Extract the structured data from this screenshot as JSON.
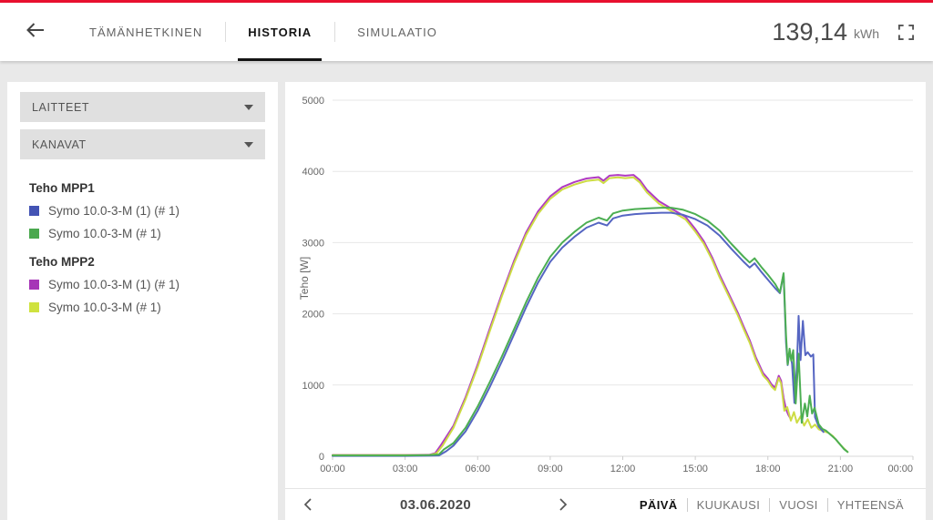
{
  "header": {
    "tabs": [
      {
        "label": "TÄMÄNHETKINEN",
        "active": false
      },
      {
        "label": "HISTORIA",
        "active": true
      },
      {
        "label": "SIMULAATIO",
        "active": false
      }
    ],
    "total_value": "139,14",
    "total_unit": "kWh"
  },
  "sidebar": {
    "dropdowns": [
      {
        "label": "LAITTEET"
      },
      {
        "label": "KANAVAT"
      }
    ],
    "legend_groups": [
      {
        "title": "Teho MPP1",
        "items": [
          {
            "label": "Symo 10.0-3-M (1) (# 1)",
            "color": "#4353b4"
          },
          {
            "label": "Symo 10.0-3-M (# 1)",
            "color": "#4aa84e"
          }
        ]
      },
      {
        "title": "Teho MPP2",
        "items": [
          {
            "label": "Symo 10.0-3-M (1) (# 1)",
            "color": "#a635b7"
          },
          {
            "label": "Symo 10.0-3-M (# 1)",
            "color": "#cfe23f"
          }
        ]
      }
    ]
  },
  "bottom_bar": {
    "date": "03.06.2020",
    "periods": [
      {
        "label": "PÄIVÄ",
        "active": true
      },
      {
        "label": "KUUKAUSI",
        "active": false
      },
      {
        "label": "VUOSI",
        "active": false
      },
      {
        "label": "YHTEENSÄ",
        "active": false
      }
    ]
  },
  "chart_data": {
    "type": "line",
    "title": "",
    "xlabel": "",
    "ylabel": "Teho [W]",
    "x_unit": "hours",
    "xlim": [
      0,
      24
    ],
    "ylim": [
      0,
      5000
    ],
    "x_ticks": [
      "00:00",
      "03:00",
      "06:00",
      "09:00",
      "12:00",
      "15:00",
      "18:00",
      "21:00",
      "00:00"
    ],
    "y_ticks": [
      0,
      1000,
      2000,
      3000,
      4000,
      5000
    ],
    "grid": "horizontal",
    "legend_position": "left-sidebar",
    "series": [
      {
        "name": "Teho MPP2 — Symo 10.0-3-M (1) (# 1)",
        "color": "#b03ac2",
        "points": [
          [
            0,
            18
          ],
          [
            1,
            18
          ],
          [
            2,
            18
          ],
          [
            3,
            18
          ],
          [
            4,
            20
          ],
          [
            4.25,
            45
          ],
          [
            4.5,
            165
          ],
          [
            5,
            430
          ],
          [
            5.5,
            830
          ],
          [
            6,
            1290
          ],
          [
            6.5,
            1790
          ],
          [
            7,
            2280
          ],
          [
            7.5,
            2740
          ],
          [
            8,
            3140
          ],
          [
            8.5,
            3440
          ],
          [
            9,
            3650
          ],
          [
            9.5,
            3780
          ],
          [
            10,
            3850
          ],
          [
            10.5,
            3900
          ],
          [
            11,
            3920
          ],
          [
            11.2,
            3870
          ],
          [
            11.45,
            3940
          ],
          [
            11.8,
            3950
          ],
          [
            12.1,
            3940
          ],
          [
            12.45,
            3950
          ],
          [
            12.7,
            3880
          ],
          [
            13,
            3740
          ],
          [
            13.5,
            3580
          ],
          [
            14,
            3480
          ],
          [
            14.6,
            3360
          ],
          [
            15,
            3190
          ],
          [
            15.35,
            3020
          ],
          [
            15.7,
            2790
          ],
          [
            16,
            2550
          ],
          [
            16.4,
            2270
          ],
          [
            16.75,
            2020
          ],
          [
            17,
            1820
          ],
          [
            17.25,
            1630
          ],
          [
            17.5,
            1390
          ],
          [
            17.8,
            1170
          ],
          [
            18,
            1090
          ],
          [
            18.15,
            1010
          ],
          [
            18.3,
            960
          ],
          [
            18.45,
            1130
          ],
          [
            18.55,
            1060
          ],
          [
            18.65,
            820
          ],
          [
            18.75,
            660
          ],
          [
            18.85,
            580
          ],
          [
            18.95,
            520
          ]
        ]
      },
      {
        "name": "Teho MPP2 — Symo 10.0-3-M (# 1)",
        "color": "#cddc44",
        "points": [
          [
            0,
            15
          ],
          [
            1,
            15
          ],
          [
            2,
            15
          ],
          [
            3,
            15
          ],
          [
            4,
            17
          ],
          [
            4.3,
            40
          ],
          [
            4.55,
            150
          ],
          [
            5,
            400
          ],
          [
            5.5,
            800
          ],
          [
            6,
            1255
          ],
          [
            6.5,
            1755
          ],
          [
            7,
            2245
          ],
          [
            7.5,
            2705
          ],
          [
            8,
            3105
          ],
          [
            8.5,
            3405
          ],
          [
            9,
            3615
          ],
          [
            9.5,
            3745
          ],
          [
            10,
            3815
          ],
          [
            10.5,
            3865
          ],
          [
            11,
            3885
          ],
          [
            11.2,
            3835
          ],
          [
            11.45,
            3905
          ],
          [
            11.8,
            3915
          ],
          [
            12.1,
            3905
          ],
          [
            12.45,
            3915
          ],
          [
            12.7,
            3845
          ],
          [
            13,
            3705
          ],
          [
            13.5,
            3545
          ],
          [
            14,
            3445
          ],
          [
            14.6,
            3325
          ],
          [
            15,
            3155
          ],
          [
            15.35,
            2985
          ],
          [
            15.7,
            2755
          ],
          [
            16,
            2515
          ],
          [
            16.4,
            2235
          ],
          [
            16.75,
            1985
          ],
          [
            17,
            1785
          ],
          [
            17.25,
            1595
          ],
          [
            17.5,
            1355
          ],
          [
            17.8,
            1135
          ],
          [
            18,
            1060
          ],
          [
            18.15,
            980
          ],
          [
            18.3,
            930
          ],
          [
            18.45,
            1100
          ],
          [
            18.55,
            1020
          ],
          [
            18.68,
            640
          ],
          [
            18.8,
            690
          ],
          [
            18.95,
            500
          ],
          [
            19.08,
            620
          ],
          [
            19.2,
            470
          ],
          [
            19.35,
            560
          ],
          [
            19.5,
            430
          ],
          [
            19.65,
            520
          ],
          [
            19.8,
            400
          ],
          [
            19.95,
            445
          ],
          [
            20.1,
            380
          ],
          [
            20.3,
            350
          ],
          [
            20.5,
            330
          ],
          [
            20.7,
            280
          ],
          [
            20.9,
            200
          ],
          [
            21.1,
            125
          ],
          [
            21.3,
            60
          ]
        ]
      },
      {
        "name": "Teho MPP1 — Symo 10.0-3-M (1) (# 1)",
        "color": "#5565c2",
        "points": [
          [
            0,
            5
          ],
          [
            1,
            5
          ],
          [
            2,
            5
          ],
          [
            3,
            5
          ],
          [
            4,
            8
          ],
          [
            4.4,
            12
          ],
          [
            4.7,
            70
          ],
          [
            5,
            150
          ],
          [
            5.5,
            350
          ],
          [
            6,
            640
          ],
          [
            6.5,
            970
          ],
          [
            7,
            1330
          ],
          [
            7.5,
            1710
          ],
          [
            8,
            2090
          ],
          [
            8.5,
            2440
          ],
          [
            9,
            2730
          ],
          [
            9.5,
            2930
          ],
          [
            10,
            3080
          ],
          [
            10.5,
            3210
          ],
          [
            11,
            3280
          ],
          [
            11.35,
            3240
          ],
          [
            11.6,
            3340
          ],
          [
            12,
            3380
          ],
          [
            12.5,
            3400
          ],
          [
            13,
            3410
          ],
          [
            13.6,
            3420
          ],
          [
            14,
            3420
          ],
          [
            14.5,
            3390
          ],
          [
            15,
            3330
          ],
          [
            15.5,
            3240
          ],
          [
            16,
            3100
          ],
          [
            16.5,
            2910
          ],
          [
            17,
            2730
          ],
          [
            17.25,
            2650
          ],
          [
            17.45,
            2710
          ],
          [
            17.75,
            2580
          ],
          [
            18,
            2480
          ],
          [
            18.3,
            2360
          ],
          [
            18.5,
            2290
          ],
          [
            18.65,
            2560
          ],
          [
            18.75,
            1600
          ],
          [
            18.82,
            1280
          ],
          [
            18.9,
            1470
          ],
          [
            19,
            1300
          ],
          [
            19.1,
            750
          ],
          [
            19.2,
            1250
          ],
          [
            19.27,
            1970
          ],
          [
            19.35,
            1350
          ],
          [
            19.45,
            1900
          ],
          [
            19.55,
            1420
          ],
          [
            19.65,
            1460
          ],
          [
            19.78,
            1400
          ],
          [
            19.88,
            1430
          ],
          [
            19.95,
            550
          ],
          [
            20.1,
            420
          ],
          [
            20.3,
            340
          ]
        ]
      },
      {
        "name": "Teho MPP1 — Symo 10.0-3-M (# 1)",
        "color": "#4cae52",
        "points": [
          [
            0,
            12
          ],
          [
            1,
            12
          ],
          [
            2,
            12
          ],
          [
            3,
            12
          ],
          [
            4,
            15
          ],
          [
            4.4,
            25
          ],
          [
            4.6,
            95
          ],
          [
            5,
            185
          ],
          [
            5.5,
            400
          ],
          [
            6,
            700
          ],
          [
            6.5,
            1040
          ],
          [
            7,
            1400
          ],
          [
            7.5,
            1780
          ],
          [
            8,
            2160
          ],
          [
            8.5,
            2510
          ],
          [
            9,
            2800
          ],
          [
            9.5,
            3000
          ],
          [
            10,
            3150
          ],
          [
            10.5,
            3280
          ],
          [
            11,
            3350
          ],
          [
            11.35,
            3310
          ],
          [
            11.6,
            3410
          ],
          [
            12,
            3450
          ],
          [
            12.5,
            3470
          ],
          [
            13,
            3480
          ],
          [
            13.6,
            3490
          ],
          [
            14,
            3490
          ],
          [
            14.5,
            3460
          ],
          [
            15,
            3400
          ],
          [
            15.5,
            3310
          ],
          [
            16,
            3170
          ],
          [
            16.5,
            2980
          ],
          [
            17,
            2800
          ],
          [
            17.25,
            2720
          ],
          [
            17.45,
            2780
          ],
          [
            17.75,
            2650
          ],
          [
            18,
            2550
          ],
          [
            18.3,
            2420
          ],
          [
            18.5,
            2300
          ],
          [
            18.65,
            2570
          ],
          [
            18.75,
            1700
          ],
          [
            18.82,
            1290
          ],
          [
            18.9,
            1510
          ],
          [
            18.97,
            1340
          ],
          [
            19.05,
            1490
          ],
          [
            19.15,
            740
          ],
          [
            19.27,
            1440
          ],
          [
            19.4,
            470
          ],
          [
            19.53,
            740
          ],
          [
            19.63,
            560
          ],
          [
            19.73,
            850
          ],
          [
            19.83,
            600
          ],
          [
            19.93,
            680
          ],
          [
            20.1,
            450
          ],
          [
            20.25,
            385
          ],
          [
            20.4,
            360
          ],
          [
            20.6,
            300
          ],
          [
            20.8,
            240
          ],
          [
            21,
            160
          ],
          [
            21.15,
            100
          ],
          [
            21.3,
            60
          ]
        ]
      }
    ]
  }
}
